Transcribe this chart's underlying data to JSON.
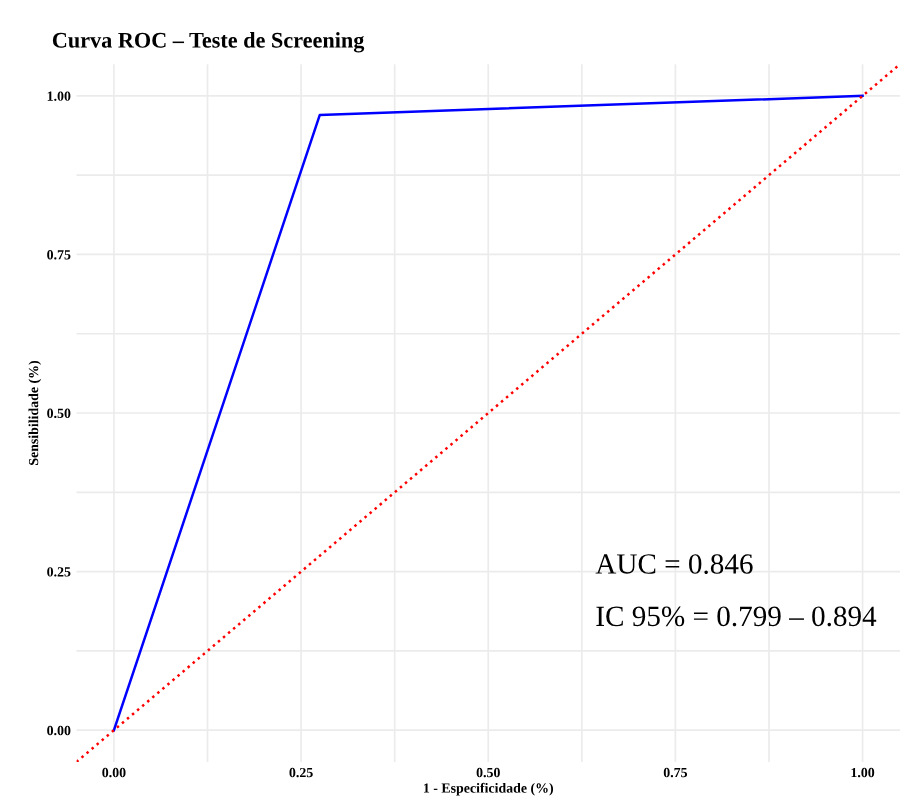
{
  "chart_data": {
    "type": "line",
    "title": "Curva ROC – Teste de Screening",
    "xlabel": "1 - Especificidade (%)",
    "ylabel": "Sensibilidade (%)",
    "series": [
      {
        "color": "#0000ff",
        "x": [
          0,
          0.275,
          1
        ],
        "values": [
          0,
          0.97,
          1
        ],
        "line_style": "solid"
      },
      {
        "color": "#ff0000",
        "x": [
          -0.05,
          1.05
        ],
        "values": [
          -0.05,
          1.05
        ],
        "line_style": "dotted"
      }
    ],
    "xlim": [
      -0.05,
      1.05
    ],
    "ylim": [
      -0.05,
      1.05
    ],
    "xticks": [
      {
        "value": 0,
        "label": "0.00"
      },
      {
        "value": 0.125,
        "label": null
      },
      {
        "value": 0.25,
        "label": "0.25"
      },
      {
        "value": 0.375,
        "label": null
      },
      {
        "value": 0.5,
        "label": "0.50"
      },
      {
        "value": 0.625,
        "label": null
      },
      {
        "value": 0.75,
        "label": "0.75"
      },
      {
        "value": 0.875,
        "label": null
      },
      {
        "value": 1,
        "label": "1.00"
      }
    ],
    "yticks": [
      {
        "value": 0,
        "label": "0.00"
      },
      {
        "value": 0.125,
        "label": null
      },
      {
        "value": 0.25,
        "label": "0.25"
      },
      {
        "value": 0.375,
        "label": null
      },
      {
        "value": 0.5,
        "label": "0.50"
      },
      {
        "value": 0.625,
        "label": null
      },
      {
        "value": 0.75,
        "label": "0.75"
      },
      {
        "value": 0.875,
        "label": null
      },
      {
        "value": 1,
        "label": "1.00"
      }
    ],
    "grid": true,
    "annotations": [
      "AUC = 0.846",
      "IC 95% = 0.799 – 0.894"
    ]
  }
}
